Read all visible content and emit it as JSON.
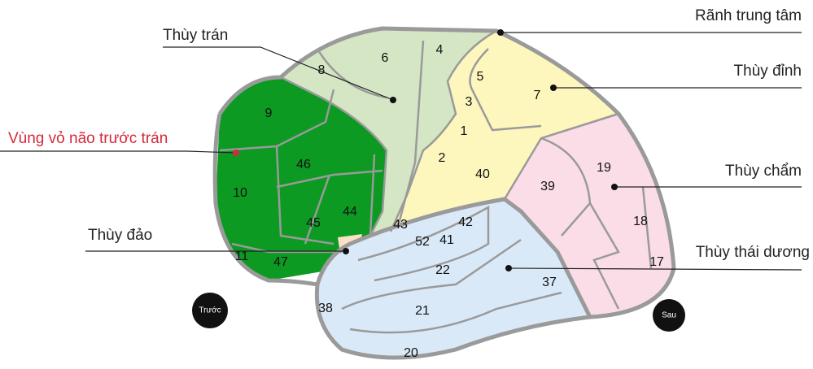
{
  "labels": {
    "frontal_lobe": "Thùy trán",
    "central_sulcus": "Rãnh trung tâm",
    "parietal_lobe": "Thùy đỉnh",
    "prefrontal_cortex": "Vùng vỏ não trước trán",
    "occipital_lobe": "Thùy chẩm",
    "insula": "Thùy đảo",
    "temporal_lobe": "Thùy thái dương"
  },
  "markers": {
    "front": "Trước",
    "back": "Sau"
  },
  "areas": [
    "8",
    "6",
    "4",
    "5",
    "3",
    "7",
    "1",
    "9",
    "46",
    "2",
    "40",
    "39",
    "19",
    "10",
    "45",
    "44",
    "43",
    "42",
    "41",
    "52",
    "18",
    "17",
    "11",
    "47",
    "22",
    "37",
    "38",
    "21",
    "20"
  ]
}
